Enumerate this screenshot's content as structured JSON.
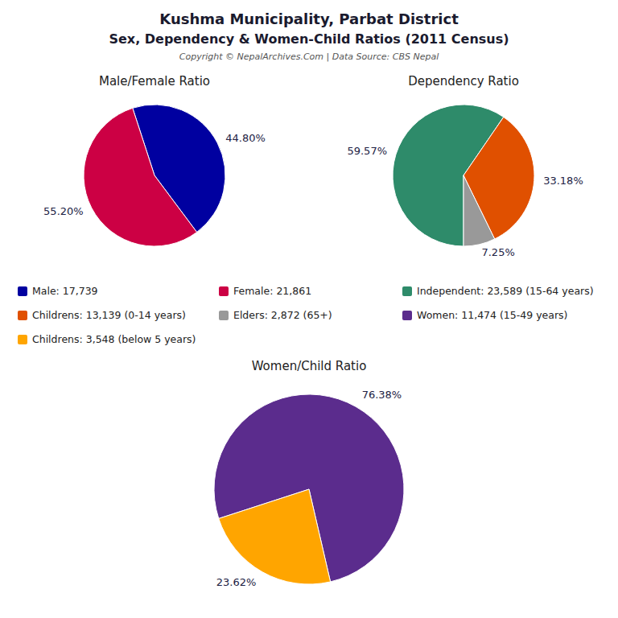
{
  "title": "Kushma Municipality, Parbat District",
  "subtitle": "Sex, Dependency & Women-Child Ratios (2011 Census)",
  "annotations": [
    "Copyright © NepalArchives.Com | Data Source: CBS Nepal"
  ],
  "chart_data": [
    {
      "type": "pie",
      "title": "Male/Female Ratio",
      "categories": [
        "Male: 17,739",
        "Female: 21,861"
      ],
      "values": [
        44.8,
        55.2
      ],
      "value_labels": [
        "44.80%",
        "55.20%"
      ],
      "colors": [
        "#0000A0",
        "#CC0044"
      ],
      "data_labels": true
    },
    {
      "type": "pie",
      "title": "Dependency Ratio",
      "categories": [
        "Independent: 23,589 (15-64 years)",
        "Childrens: 13,139 (0-14 years)",
        "Elders: 2,872 (65+)"
      ],
      "values": [
        59.57,
        33.18,
        7.25
      ],
      "value_labels": [
        "59.57%",
        "33.18%",
        "7.25%"
      ],
      "colors": [
        "#2E8B6A",
        "#E05000",
        "#999999"
      ],
      "data_labels": true
    },
    {
      "type": "pie",
      "title": "Women/Child Ratio",
      "categories": [
        "Women: 11,474 (15-49 years)",
        "Childrens: 3,548 (below 5 years)"
      ],
      "values": [
        76.38,
        23.62
      ],
      "value_labels": [
        "76.38%",
        "23.62%"
      ],
      "colors": [
        "#5B2C8D",
        "#FFA500"
      ],
      "data_labels": true
    }
  ]
}
